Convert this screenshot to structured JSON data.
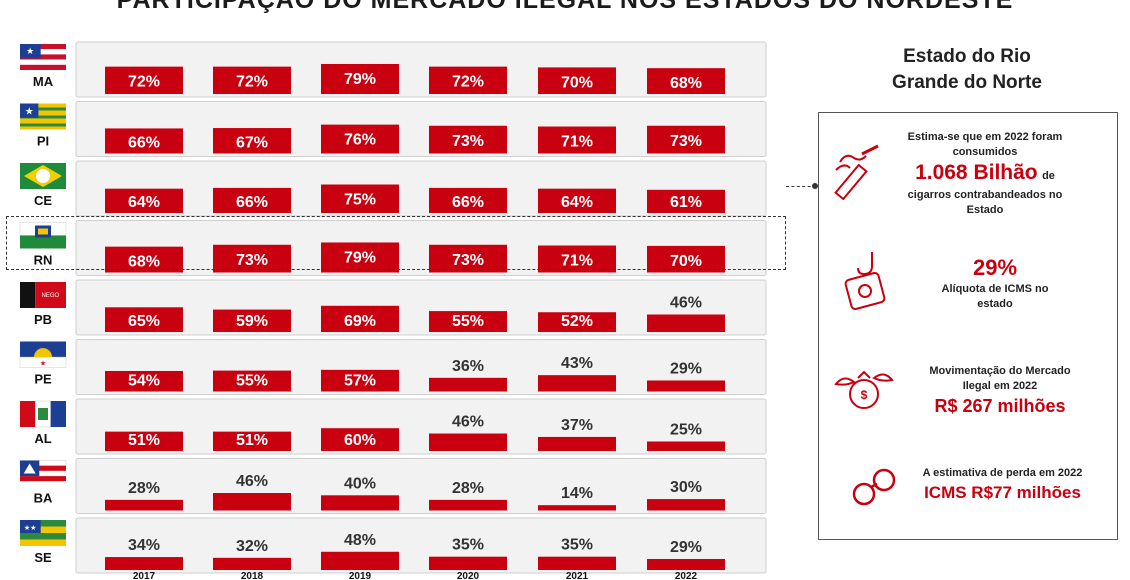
{
  "title": "PARTICIPAÇÃO DO MERCADO ILEGAL NOS ESTADOS DO NORDESTE",
  "chart_data": {
    "type": "bar",
    "categories": [
      "2017",
      "2018",
      "2019",
      "2020",
      "2021",
      "2022"
    ],
    "series": [
      {
        "name": "MA",
        "values": [
          72,
          72,
          79,
          72,
          70,
          68
        ]
      },
      {
        "name": "PI",
        "values": [
          66,
          67,
          76,
          73,
          71,
          73
        ]
      },
      {
        "name": "CE",
        "values": [
          64,
          66,
          75,
          66,
          64,
          61
        ]
      },
      {
        "name": "RN",
        "values": [
          68,
          73,
          79,
          73,
          71,
          70
        ]
      },
      {
        "name": "PB",
        "values": [
          65,
          59,
          69,
          55,
          52,
          46
        ]
      },
      {
        "name": "PE",
        "values": [
          54,
          55,
          57,
          36,
          43,
          29
        ]
      },
      {
        "name": "AL",
        "values": [
          51,
          51,
          60,
          46,
          37,
          25
        ]
      },
      {
        "name": "BA",
        "values": [
          28,
          46,
          40,
          28,
          14,
          30
        ]
      },
      {
        "name": "SE",
        "values": [
          34,
          32,
          48,
          35,
          35,
          29
        ]
      }
    ],
    "value_suffix": "%",
    "highlighted": "RN",
    "colors": {
      "bar": "#c8000f",
      "row_bg": "#f2f2f2",
      "label_inside": "#ffffff",
      "label_outside": "#333333"
    }
  },
  "flags": {
    "MA": "flag-ma-icon",
    "PI": "flag-pi-icon",
    "CE": "flag-ce-icon",
    "RN": "flag-rn-icon",
    "PB": "flag-pb-icon",
    "PE": "flag-pe-icon",
    "AL": "flag-al-icon",
    "BA": "flag-ba-icon",
    "SE": "flag-se-icon"
  },
  "panel": {
    "title_line1": "Estado do Rio",
    "title_line2": "Grande do Norte",
    "fact1": {
      "text1": "Estima-se que em 2022 foram",
      "text2": "consumidos",
      "value": "1.068 Bilhão",
      "unit": "de",
      "text3": "cigarros contrabandeados no",
      "text4": "Estado",
      "icon": "cigarette-icon"
    },
    "fact2": {
      "value": "29%",
      "text1": "Alíquota de ICMS no",
      "text2": "estado",
      "icon": "money-hook-icon"
    },
    "fact3": {
      "text1": "Movimentação do Mercado",
      "text2": "Ilegal em 2022",
      "value": "R$ 267 milhões",
      "icon": "money-bag-wings-icon"
    },
    "fact4": {
      "text1": "A estimativa de perda em 2022",
      "value": "ICMS R$77 milhões",
      "icon": "handcuffs-icon"
    }
  }
}
